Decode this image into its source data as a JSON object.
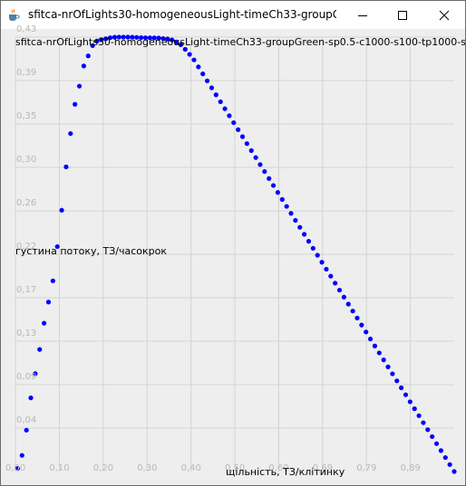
{
  "window": {
    "title": "sfitca-nrOfLights30-homogeneousLight-timeCh33-groupGre..."
  },
  "icons": {
    "app": "java-cup-icon",
    "minimize": "minimize-icon",
    "maximize": "maximize-icon",
    "close": "close-icon"
  },
  "colors": {
    "background": "#eeeeee",
    "grid": "#d4d4d4",
    "points": "#0000ff",
    "tick_labels": "#b8b8b8"
  },
  "chart_data": {
    "type": "scatter",
    "title": "sfitca-nrOfLights30-homogeneousLight-timeCh33-groupGreen-sp0.5-c1000-s100-tp1000-sp1",
    "xlabel": "щільність, ТЗ/клітинку",
    "ylabel": "густина потоку, ТЗ/часокрок",
    "x_ticks": [
      "0,00",
      "0,10",
      "0,20",
      "0,30",
      "0,40",
      "0,50",
      "0,60",
      "0,69",
      "0,79",
      "0,89"
    ],
    "x_tick_values": [
      0.0,
      0.0995,
      0.199,
      0.2985,
      0.398,
      0.4975,
      0.597,
      0.6965,
      0.796,
      0.8955
    ],
    "y_ticks": [
      "0,43",
      "0,39",
      "0,35",
      "0,30",
      "0,26",
      "0,22",
      "0,17",
      "0,13",
      "0,09",
      "0,04"
    ],
    "y_tick_values": [
      0.4306,
      0.3875,
      0.3445,
      0.3014,
      0.2583,
      0.2153,
      0.1722,
      0.1292,
      0.0861,
      0.0431
    ],
    "xlim": [
      0.0,
      0.995
    ],
    "ylim": [
      0.0,
      0.4306
    ],
    "grid": true,
    "series": [
      {
        "x": [
          0.005,
          0.015,
          0.025,
          0.035,
          0.045,
          0.055,
          0.065,
          0.075,
          0.085,
          0.095,
          0.105,
          0.115,
          0.125,
          0.135,
          0.145,
          0.155,
          0.165,
          0.175,
          0.185,
          0.195,
          0.205,
          0.215,
          0.225,
          0.235,
          0.245,
          0.255,
          0.265,
          0.275,
          0.285,
          0.295,
          0.305,
          0.315,
          0.325,
          0.335,
          0.345,
          0.355,
          0.365,
          0.375,
          0.385,
          0.395,
          0.405,
          0.415,
          0.425,
          0.435,
          0.445,
          0.455,
          0.465,
          0.475,
          0.485,
          0.495,
          0.505,
          0.515,
          0.525,
          0.535,
          0.545,
          0.555,
          0.565,
          0.575,
          0.585,
          0.595,
          0.605,
          0.615,
          0.625,
          0.635,
          0.645,
          0.655,
          0.665,
          0.675,
          0.685,
          0.695,
          0.705,
          0.715,
          0.725,
          0.735,
          0.745,
          0.755,
          0.765,
          0.775,
          0.785,
          0.795,
          0.805,
          0.815,
          0.825,
          0.835,
          0.845,
          0.855,
          0.865,
          0.875,
          0.885,
          0.895,
          0.905,
          0.915,
          0.925,
          0.935,
          0.945,
          0.955,
          0.965,
          0.975,
          0.985,
          0.995
        ],
        "y": [
          0.003,
          0.016,
          0.041,
          0.073,
          0.097,
          0.121,
          0.147,
          0.168,
          0.189,
          0.223,
          0.259,
          0.302,
          0.335,
          0.364,
          0.382,
          0.402,
          0.412,
          0.4222,
          0.4268,
          0.428,
          0.429,
          0.43,
          0.4305,
          0.4306,
          0.4306,
          0.4306,
          0.4305,
          0.4303,
          0.4301,
          0.43,
          0.4299,
          0.4298,
          0.4297,
          0.4292,
          0.4288,
          0.4278,
          0.4258,
          0.4231,
          0.4185,
          0.4135,
          0.408,
          0.4025,
          0.397,
          0.3915,
          0.386,
          0.3805,
          0.375,
          0.3695,
          0.364,
          0.3585,
          0.353,
          0.3475,
          0.342,
          0.3365,
          0.331,
          0.3255,
          0.32,
          0.3145,
          0.309,
          0.3035,
          0.298,
          0.2925,
          0.287,
          0.2815,
          0.276,
          0.2705,
          0.265,
          0.2595,
          0.254,
          0.2485,
          0.243,
          0.2375,
          0.232,
          0.2265,
          0.221,
          0.2155,
          0.21,
          0.2045,
          0.199,
          0.1935,
          0.188,
          0.1825,
          0.177,
          0.1715,
          0.166,
          0.1605,
          0.155,
          0.1495,
          0.144,
          0.1385,
          0.133,
          0.1275,
          0.122,
          0.1165,
          0.111,
          0.1055,
          0.1,
          0.0945,
          0.089,
          0.0835
        ],
        "note_y_tail": "last points trend to ~0 at x≈0.995"
      }
    ]
  }
}
